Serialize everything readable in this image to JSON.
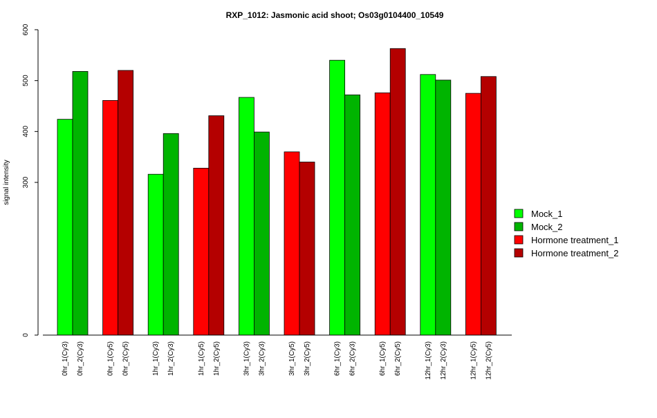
{
  "chart_data": {
    "type": "bar",
    "title": "RXP_1012: Jasmonic acid shoot; Os03g0104400_10549",
    "xlabel": "",
    "ylabel": "signal intensity",
    "yticks": [
      0,
      300,
      400,
      500,
      600
    ],
    "ylim": [
      0,
      600
    ],
    "y_axis_break": true,
    "grid": false,
    "legend_position": "right",
    "legend": [
      {
        "name": "Mock_1",
        "color": "#00FF00"
      },
      {
        "name": "Mock_2",
        "color": "#00B400"
      },
      {
        "name": "Hormone treatment_1",
        "color": "#FF0000"
      },
      {
        "name": "Hormone treatment_2",
        "color": "#B40000"
      }
    ],
    "groups": [
      {
        "bars": [
          {
            "label": "0hr_1(Cy3)",
            "value": 424,
            "color": "#00FF00"
          },
          {
            "label": "0hr_2(Cy3)",
            "value": 518,
            "color": "#00B400"
          }
        ]
      },
      {
        "bars": [
          {
            "label": "0hr_1(Cy5)",
            "value": 461,
            "color": "#FF0000"
          },
          {
            "label": "0hr_2(Cy5)",
            "value": 520,
            "color": "#B40000"
          }
        ]
      },
      {
        "bars": [
          {
            "label": "1hr_1(Cy3)",
            "value": 316,
            "color": "#00FF00"
          },
          {
            "label": "1hr_2(Cy3)",
            "value": 396,
            "color": "#00B400"
          }
        ]
      },
      {
        "bars": [
          {
            "label": "1hr_1(Cy5)",
            "value": 328,
            "color": "#FF0000"
          },
          {
            "label": "1hr_2(Cy5)",
            "value": 431,
            "color": "#B40000"
          }
        ]
      },
      {
        "bars": [
          {
            "label": "3hr_1(Cy3)",
            "value": 467,
            "color": "#00FF00"
          },
          {
            "label": "3hr_2(Cy3)",
            "value": 399,
            "color": "#00B400"
          }
        ]
      },
      {
        "bars": [
          {
            "label": "3hr_1(Cy5)",
            "value": 360,
            "color": "#FF0000"
          },
          {
            "label": "3hr_2(Cy5)",
            "value": 340,
            "color": "#B40000"
          }
        ]
      },
      {
        "bars": [
          {
            "label": "6hr_1(Cy3)",
            "value": 540,
            "color": "#00FF00"
          },
          {
            "label": "6hr_2(Cy3)",
            "value": 472,
            "color": "#00B400"
          }
        ]
      },
      {
        "bars": [
          {
            "label": "6hr_1(Cy5)",
            "value": 476,
            "color": "#FF0000"
          },
          {
            "label": "6hr_2(Cy5)",
            "value": 563,
            "color": "#B40000"
          }
        ]
      },
      {
        "bars": [
          {
            "label": "12hr_1(Cy3)",
            "value": 512,
            "color": "#00FF00"
          },
          {
            "label": "12hr_2(Cy3)",
            "value": 501,
            "color": "#00B400"
          }
        ]
      },
      {
        "bars": [
          {
            "label": "12hr_1(Cy5)",
            "value": 475,
            "color": "#FF0000"
          },
          {
            "label": "12hr_2(Cy5)",
            "value": 508,
            "color": "#B40000"
          }
        ]
      }
    ]
  }
}
